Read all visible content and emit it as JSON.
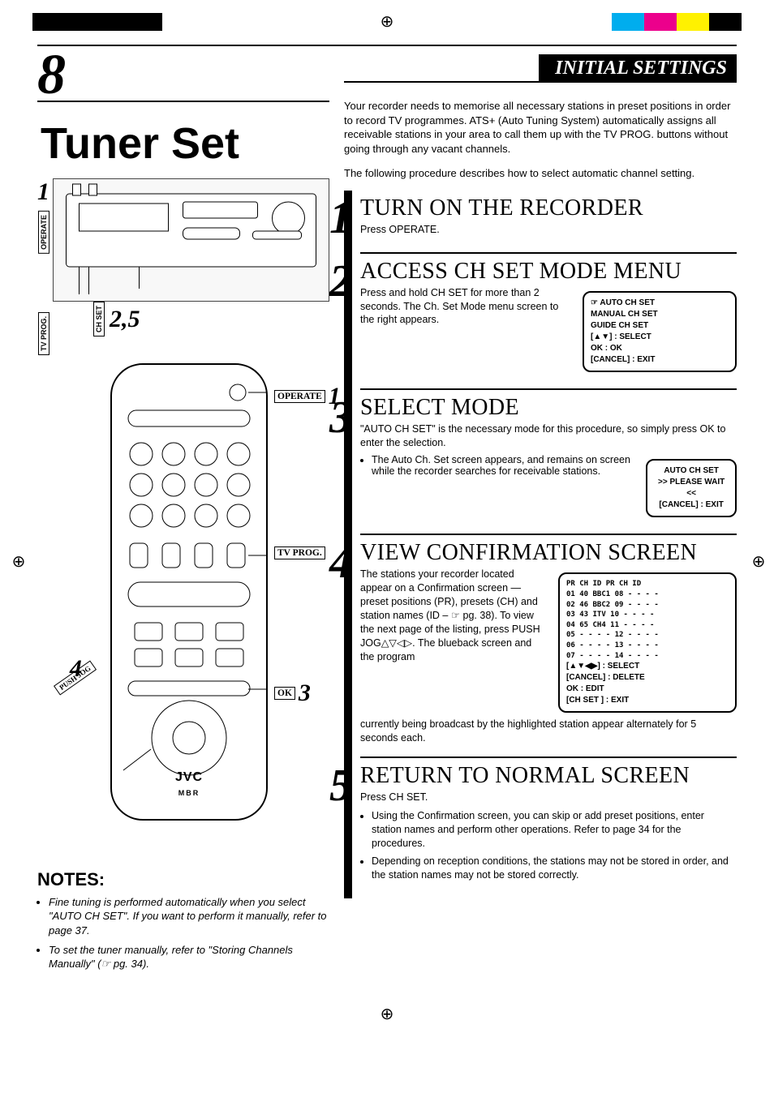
{
  "reg_colors_left": [
    "#000000",
    "#000000",
    "#000000",
    "#000000"
  ],
  "reg_colors_right": [
    "#00adee",
    "#ec008c",
    "#fff100",
    "#000000"
  ],
  "page_number": "8",
  "section_banner": "INITIAL SETTINGS",
  "main_title": "Tuner Set",
  "device": {
    "label_operate": "OPERATE",
    "label_tvprog": "TV PROG.",
    "label_chset": "CH SET",
    "ref_1": "1",
    "ref_25": "2,5"
  },
  "remote": {
    "brand": "JVC",
    "sub": "MBR",
    "label_operate": "OPERATE",
    "ref_operate": "1",
    "label_tvprog": "TV PROG.",
    "label_ok": "OK",
    "ref_ok": "3",
    "label_pushjog": "PUSH JOG",
    "ref_pushjog": "4"
  },
  "notes": {
    "heading": "NOTES:",
    "items": [
      "Fine tuning is performed automatically when you select \"AUTO CH SET\". If you want to perform it manually, refer to page 37.",
      "To set the tuner manually, refer to \"Storing Channels Manually\" (☞ pg. 34)."
    ]
  },
  "intro1": "Your recorder needs to memorise all necessary stations in preset positions in order to record TV programmes. ATS+ (Auto Tuning System) automatically assigns all receivable stations in your area to call them up with the TV PROG. buttons without going through any vacant channels.",
  "intro2": "The following procedure describes how to select automatic channel setting.",
  "steps": [
    {
      "num": "1",
      "title": "TURN ON THE RECORDER",
      "body": "Press OPERATE."
    },
    {
      "num": "2",
      "title": "ACCESS CH SET MODE MENU",
      "body": "Press and hold CH SET for more than 2 seconds. The Ch. Set Mode menu screen to the right appears.",
      "osd": [
        "☞  AUTO CH SET",
        "    MANUAL CH SET",
        "    GUIDE CH SET",
        "[▲▼] : SELECT",
        "OK : OK",
        "[CANCEL] : EXIT"
      ]
    },
    {
      "num": "3",
      "title": "SELECT MODE",
      "body1": "\"AUTO CH SET\" is the necessary mode for this procedure, so simply press OK to enter the selection.",
      "bullet": "The Auto Ch. Set screen appears, and remains on screen while the recorder searches for receivable stations.",
      "osd": [
        "AUTO CH SET",
        ">> PLEASE WAIT <<",
        "",
        "[CANCEL] : EXIT"
      ]
    },
    {
      "num": "4",
      "title": "VIEW CONFIRMATION SCREEN",
      "body1": "The stations your recorder located appear on a Confirmation screen — preset positions (PR), presets (CH) and station names (ID – ☞ pg. 38). To view the next page of the listing, press PUSH JOG△▽◁▷. The blueback screen and the program",
      "body2": "currently being broadcast by the highlighted station appear alternately for 5 seconds each.",
      "osd_table": {
        "header": [
          "PR",
          "CH",
          "ID",
          "PR",
          "CH",
          "ID"
        ],
        "rows": [
          [
            "01",
            "40",
            "BBC1",
            "08",
            "",
            "- - - -"
          ],
          [
            "02",
            "46",
            "BBC2",
            "09",
            "",
            "- - - -"
          ],
          [
            "03",
            "43",
            "ITV",
            "10",
            "",
            "- - - -"
          ],
          [
            "04",
            "65",
            "CH4",
            "11",
            "",
            "- - - -"
          ],
          [
            "05",
            "",
            "- - - -",
            "12",
            "",
            "- - - -"
          ],
          [
            "06",
            "",
            "- - - -",
            "13",
            "",
            "- - - -"
          ],
          [
            "07",
            "",
            "- - - -",
            "14",
            "",
            "- - - -"
          ]
        ],
        "footer": [
          "[▲▼◀▶] : SELECT",
          "[CANCEL] : DELETE",
          "OK : EDIT",
          "[CH SET ] : EXIT"
        ]
      }
    },
    {
      "num": "5",
      "title": "RETURN TO NORMAL SCREEN",
      "body": "Press CH SET.",
      "bullets": [
        "Using the Confirmation screen, you can skip or add preset positions, enter station names and perform other operations. Refer to page 34 for the procedures.",
        "Depending on reception conditions, the stations may not be stored in order, and the station names may not be stored correctly."
      ]
    }
  ]
}
